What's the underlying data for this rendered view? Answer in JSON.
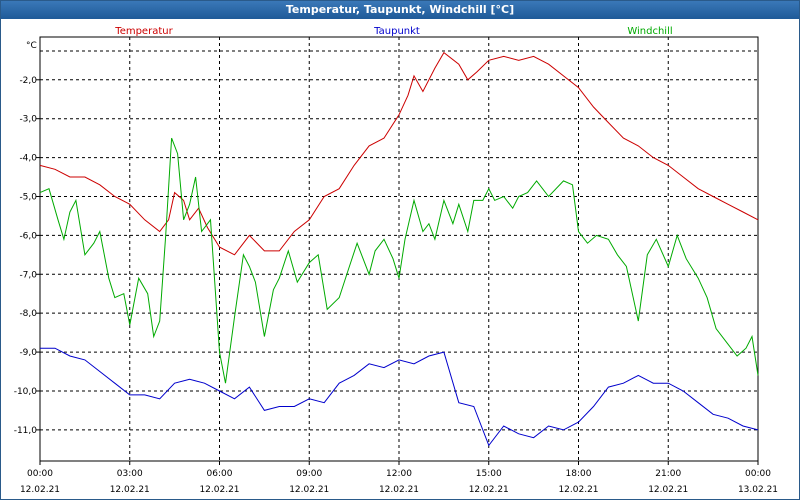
{
  "window": {
    "title": "Temperatur, Taupunkt, Windchill [°C]"
  },
  "chart_data": {
    "type": "line",
    "ylabel": "°C",
    "ylim": [
      -11.8,
      -0.9
    ],
    "yticks": [
      -2.0,
      -3.0,
      -4.0,
      -5.0,
      -6.0,
      -7.0,
      -8.0,
      -9.0,
      -10.0,
      -11.0
    ],
    "ytick_labels": [
      "-2,0",
      "-3,0",
      "-4,0",
      "-5,0",
      "-6,0",
      "-7,0",
      "-8,0",
      "-9,0",
      "-10,0",
      "-11,0"
    ],
    "xlim": [
      0,
      24
    ],
    "xticks": [
      0,
      3,
      6,
      9,
      12,
      15,
      18,
      21,
      24
    ],
    "xtick_times": [
      "00:00",
      "03:00",
      "06:00",
      "09:00",
      "12:00",
      "15:00",
      "18:00",
      "21:00",
      "00:00"
    ],
    "xtick_dates": [
      "12.02.21",
      "12.02.21",
      "12.02.21",
      "12.02.21",
      "12.02.21",
      "12.02.21",
      "12.02.21",
      "12.02.21",
      "13.02.21"
    ],
    "grid": true,
    "legend_placement": "top",
    "series": [
      {
        "name": "Temperatur",
        "color": "#cc0000",
        "points": [
          [
            0,
            -4.2
          ],
          [
            0.5,
            -4.3
          ],
          [
            1,
            -4.5
          ],
          [
            1.5,
            -4.5
          ],
          [
            2,
            -4.7
          ],
          [
            2.5,
            -5.0
          ],
          [
            3,
            -5.2
          ],
          [
            3.5,
            -5.6
          ],
          [
            4,
            -5.9
          ],
          [
            4.3,
            -5.6
          ],
          [
            4.5,
            -4.9
          ],
          [
            4.8,
            -5.1
          ],
          [
            5,
            -5.6
          ],
          [
            5.3,
            -5.3
          ],
          [
            5.6,
            -5.8
          ],
          [
            6,
            -6.3
          ],
          [
            6.5,
            -6.5
          ],
          [
            7,
            -6.0
          ],
          [
            7.5,
            -6.4
          ],
          [
            8,
            -6.4
          ],
          [
            8.5,
            -5.9
          ],
          [
            9,
            -5.6
          ],
          [
            9.5,
            -5.0
          ],
          [
            10,
            -4.8
          ],
          [
            10.5,
            -4.2
          ],
          [
            11,
            -3.7
          ],
          [
            11.5,
            -3.5
          ],
          [
            12,
            -2.9
          ],
          [
            12.3,
            -2.4
          ],
          [
            12.5,
            -1.9
          ],
          [
            12.8,
            -2.3
          ],
          [
            13.2,
            -1.7
          ],
          [
            13.5,
            -1.3
          ],
          [
            14,
            -1.6
          ],
          [
            14.3,
            -2.0
          ],
          [
            14.6,
            -1.8
          ],
          [
            15,
            -1.5
          ],
          [
            15.5,
            -1.4
          ],
          [
            16,
            -1.5
          ],
          [
            16.5,
            -1.4
          ],
          [
            17,
            -1.6
          ],
          [
            17.5,
            -1.9
          ],
          [
            18,
            -2.2
          ],
          [
            18.5,
            -2.7
          ],
          [
            19,
            -3.1
          ],
          [
            19.5,
            -3.5
          ],
          [
            20,
            -3.7
          ],
          [
            20.5,
            -4.0
          ],
          [
            21,
            -4.2
          ],
          [
            21.5,
            -4.5
          ],
          [
            22,
            -4.8
          ],
          [
            22.5,
            -5.0
          ],
          [
            23,
            -5.2
          ],
          [
            23.5,
            -5.4
          ],
          [
            24,
            -5.6
          ]
        ]
      },
      {
        "name": "Taupunkt",
        "color": "#0000cc",
        "points": [
          [
            0,
            -8.9
          ],
          [
            0.5,
            -8.9
          ],
          [
            1,
            -9.1
          ],
          [
            1.5,
            -9.2
          ],
          [
            2,
            -9.5
          ],
          [
            2.5,
            -9.8
          ],
          [
            3,
            -10.1
          ],
          [
            3.5,
            -10.1
          ],
          [
            4,
            -10.2
          ],
          [
            4.5,
            -9.8
          ],
          [
            5,
            -9.7
          ],
          [
            5.5,
            -9.8
          ],
          [
            6,
            -10.0
          ],
          [
            6.5,
            -10.2
          ],
          [
            7,
            -9.9
          ],
          [
            7.5,
            -10.5
          ],
          [
            8,
            -10.4
          ],
          [
            8.5,
            -10.4
          ],
          [
            9,
            -10.2
          ],
          [
            9.5,
            -10.3
          ],
          [
            10,
            -9.8
          ],
          [
            10.5,
            -9.6
          ],
          [
            11,
            -9.3
          ],
          [
            11.5,
            -9.4
          ],
          [
            12,
            -9.2
          ],
          [
            12.5,
            -9.3
          ],
          [
            13,
            -9.1
          ],
          [
            13.5,
            -9.0
          ],
          [
            14,
            -10.3
          ],
          [
            14.5,
            -10.4
          ],
          [
            15,
            -11.4
          ],
          [
            15.5,
            -10.9
          ],
          [
            16,
            -11.1
          ],
          [
            16.5,
            -11.2
          ],
          [
            17,
            -10.9
          ],
          [
            17.5,
            -11.0
          ],
          [
            18,
            -10.8
          ],
          [
            18.5,
            -10.4
          ],
          [
            19,
            -9.9
          ],
          [
            19.5,
            -9.8
          ],
          [
            20,
            -9.6
          ],
          [
            20.5,
            -9.8
          ],
          [
            21,
            -9.8
          ],
          [
            21.5,
            -10.0
          ],
          [
            22,
            -10.3
          ],
          [
            22.5,
            -10.6
          ],
          [
            23,
            -10.7
          ],
          [
            23.5,
            -10.9
          ],
          [
            24,
            -11.0
          ]
        ]
      },
      {
        "name": "Windchill",
        "color": "#00aa00",
        "points": [
          [
            0,
            -4.9
          ],
          [
            0.3,
            -4.8
          ],
          [
            0.6,
            -5.6
          ],
          [
            0.8,
            -6.1
          ],
          [
            1,
            -5.4
          ],
          [
            1.2,
            -5.1
          ],
          [
            1.5,
            -6.5
          ],
          [
            1.8,
            -6.2
          ],
          [
            2,
            -5.9
          ],
          [
            2.3,
            -7.1
          ],
          [
            2.5,
            -7.6
          ],
          [
            2.8,
            -7.5
          ],
          [
            3,
            -8.3
          ],
          [
            3.3,
            -7.1
          ],
          [
            3.6,
            -7.5
          ],
          [
            3.8,
            -8.6
          ],
          [
            4,
            -8.2
          ],
          [
            4.2,
            -6.0
          ],
          [
            4.4,
            -3.5
          ],
          [
            4.6,
            -3.9
          ],
          [
            4.8,
            -5.6
          ],
          [
            5,
            -5.2
          ],
          [
            5.2,
            -4.5
          ],
          [
            5.4,
            -5.9
          ],
          [
            5.7,
            -5.6
          ],
          [
            6,
            -9.0
          ],
          [
            6.2,
            -9.8
          ],
          [
            6.5,
            -8.1
          ],
          [
            6.8,
            -6.5
          ],
          [
            7,
            -6.8
          ],
          [
            7.2,
            -7.2
          ],
          [
            7.5,
            -8.6
          ],
          [
            7.8,
            -7.4
          ],
          [
            8,
            -7.1
          ],
          [
            8.3,
            -6.4
          ],
          [
            8.6,
            -7.2
          ],
          [
            9,
            -6.7
          ],
          [
            9.3,
            -6.5
          ],
          [
            9.6,
            -7.9
          ],
          [
            10,
            -7.6
          ],
          [
            10.3,
            -6.9
          ],
          [
            10.6,
            -6.2
          ],
          [
            11,
            -7.0
          ],
          [
            11.2,
            -6.4
          ],
          [
            11.5,
            -6.1
          ],
          [
            11.8,
            -6.6
          ],
          [
            12,
            -7.1
          ],
          [
            12.2,
            -6.1
          ],
          [
            12.5,
            -5.1
          ],
          [
            12.8,
            -5.9
          ],
          [
            13,
            -5.7
          ],
          [
            13.2,
            -6.1
          ],
          [
            13.5,
            -5.1
          ],
          [
            13.8,
            -5.7
          ],
          [
            14,
            -5.2
          ],
          [
            14.3,
            -5.9
          ],
          [
            14.5,
            -5.1
          ],
          [
            14.8,
            -5.1
          ],
          [
            15,
            -4.8
          ],
          [
            15.2,
            -5.1
          ],
          [
            15.5,
            -5.0
          ],
          [
            15.8,
            -5.3
          ],
          [
            16,
            -5.0
          ],
          [
            16.3,
            -4.9
          ],
          [
            16.6,
            -4.6
          ],
          [
            17,
            -5.0
          ],
          [
            17.5,
            -4.6
          ],
          [
            17.8,
            -4.7
          ],
          [
            18,
            -5.9
          ],
          [
            18.3,
            -6.2
          ],
          [
            18.6,
            -6.0
          ],
          [
            19,
            -6.1
          ],
          [
            19.3,
            -6.5
          ],
          [
            19.6,
            -6.8
          ],
          [
            20,
            -8.2
          ],
          [
            20.3,
            -6.5
          ],
          [
            20.6,
            -6.1
          ],
          [
            21,
            -6.8
          ],
          [
            21.3,
            -6.0
          ],
          [
            21.6,
            -6.6
          ],
          [
            22,
            -7.1
          ],
          [
            22.3,
            -7.6
          ],
          [
            22.6,
            -8.4
          ],
          [
            23,
            -8.8
          ],
          [
            23.3,
            -9.1
          ],
          [
            23.6,
            -8.9
          ],
          [
            23.8,
            -8.6
          ],
          [
            24,
            -9.6
          ]
        ]
      }
    ]
  }
}
